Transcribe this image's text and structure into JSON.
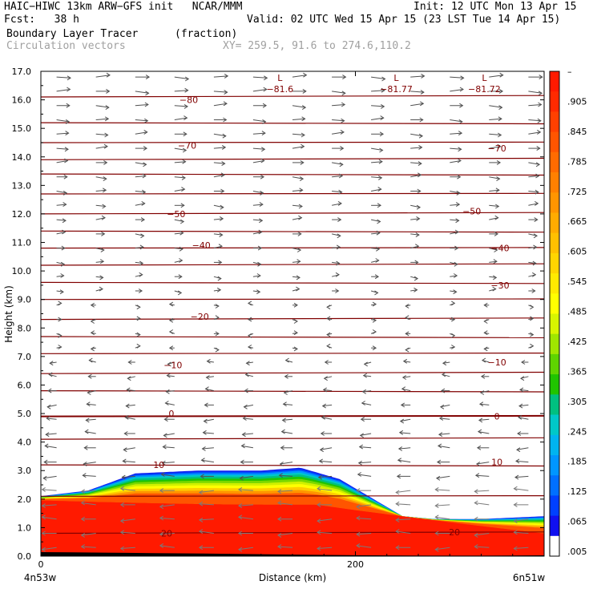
{
  "header": {
    "line1_left": "HAIC−HIWC 13km ARW−GFS init   NCAR/MMM",
    "line1_right": "Init: 12 UTC Mon 13 Apr 15",
    "line2_left": "Fcst:   38 h",
    "line2_right": "Valid: 02 UTC Wed 15 Apr 15 (23 LST Tue 14 Apr 15)",
    "line3_left": "Boundary Layer Tracer",
    "line3_mid": "(fraction)",
    "line4_left": "Circulation vectors",
    "line4_mid": "XY= 259.5, 91.6 to 274.6,110.2"
  },
  "chart_data": {
    "type": "heatmap",
    "title": "Boundary Layer Tracer (fraction)",
    "xlabel": "Distance (km)",
    "ylabel": "Height (km)",
    "xlim": [
      0,
      320
    ],
    "ylim": [
      0,
      17
    ],
    "x_tick_values": [
      0,
      200
    ],
    "x_tick_labels": [
      "0",
      "200"
    ],
    "x_end_labels": [
      "4n53w",
      "6n51w"
    ],
    "y_tick_values": [
      0,
      1,
      2,
      3,
      4,
      5,
      6,
      7,
      8,
      9,
      10,
      11,
      12,
      13,
      14,
      15,
      16,
      17
    ],
    "y_tick_labels": [
      "0.0",
      "1.0",
      "2.0",
      "3.0",
      "4.0",
      "5.0",
      "6.0",
      "7.0",
      "8.0",
      "9.0",
      "10.0",
      "11.0",
      "12.0",
      "13.0",
      "14.0",
      "15.0",
      "16.0",
      "17.0"
    ],
    "colorbar": {
      "labels": [
        "–",
        ".905",
        ".845",
        ".785",
        ".725",
        ".665",
        ".605",
        ".545",
        ".485",
        ".425",
        ".365",
        ".305",
        ".245",
        ".185",
        ".125",
        ".065",
        ".005"
      ],
      "colors": [
        "#ff1a00",
        "#ff2a00",
        "#ff4000",
        "#ff5500",
        "#ff6b00",
        "#ff8000",
        "#ff9500",
        "#ffab00",
        "#ffc000",
        "#ffd500",
        "#ffea00",
        "#ffff00",
        "#d8f500",
        "#a0e600",
        "#5fd400",
        "#20c400",
        "#00c080",
        "#00c8c8",
        "#00b4f0",
        "#0096ff",
        "#0070ff",
        "#0040ff",
        "#1010f0",
        "#ffffff"
      ]
    },
    "tracer_top_km": [
      {
        "x": 0,
        "top": 2.1
      },
      {
        "x": 30,
        "top": 2.3
      },
      {
        "x": 60,
        "top": 2.9
      },
      {
        "x": 100,
        "top": 3.0
      },
      {
        "x": 140,
        "top": 3.0
      },
      {
        "x": 165,
        "top": 3.1
      },
      {
        "x": 190,
        "top": 2.7
      },
      {
        "x": 230,
        "top": 1.4
      },
      {
        "x": 250,
        "top": 1.3
      },
      {
        "x": 280,
        "top": 1.3
      },
      {
        "x": 320,
        "top": 1.4
      }
    ],
    "contour_labels": [
      {
        "text": "−80",
        "x": 94,
        "y": 16.0
      },
      {
        "text": "−70",
        "x": 93,
        "y": 14.4
      },
      {
        "text": "−70",
        "x": 290,
        "y": 14.3
      },
      {
        "text": "−50",
        "x": 86,
        "y": 12.0
      },
      {
        "text": "−50",
        "x": 274,
        "y": 12.1
      },
      {
        "text": "−40",
        "x": 102,
        "y": 10.9
      },
      {
        "text": "−40",
        "x": 292,
        "y": 10.8
      },
      {
        "text": "−30",
        "x": 292,
        "y": 9.5
      },
      {
        "text": "−20",
        "x": 101,
        "y": 8.4
      },
      {
        "text": "−10",
        "x": 84,
        "y": 6.7
      },
      {
        "text": "−10",
        "x": 290,
        "y": 6.8
      },
      {
        "text": "0",
        "x": 83,
        "y": 5.0
      },
      {
        "text": "0",
        "x": 290,
        "y": 4.9
      },
      {
        "text": "10",
        "x": 75,
        "y": 3.2
      },
      {
        "text": "10",
        "x": 290,
        "y": 3.3
      },
      {
        "text": "20",
        "x": 80,
        "y": 0.8
      },
      {
        "text": "20",
        "x": 263,
        "y": 0.85
      }
    ],
    "min_labels": [
      {
        "letter": "L",
        "value": "−81.6",
        "x": 152,
        "y": 16.6
      },
      {
        "letter": "L",
        "value": "−81.77",
        "x": 226,
        "y": 16.6
      },
      {
        "letter": "L",
        "value": "−81.72",
        "x": 282,
        "y": 16.6
      }
    ],
    "isotherms_km": [
      16.1,
      15.2,
      14.5,
      13.9,
      13.4,
      12.7,
      12.0,
      11.4,
      10.8,
      10.2,
      9.6,
      9.0,
      8.3,
      7.7,
      7.1,
      6.4,
      5.8,
      4.9,
      4.1,
      3.2,
      2.1,
      0.8
    ],
    "vectors": "circulation vectors: westerly aloft (upper levels), easterly in lower boundary layer"
  }
}
